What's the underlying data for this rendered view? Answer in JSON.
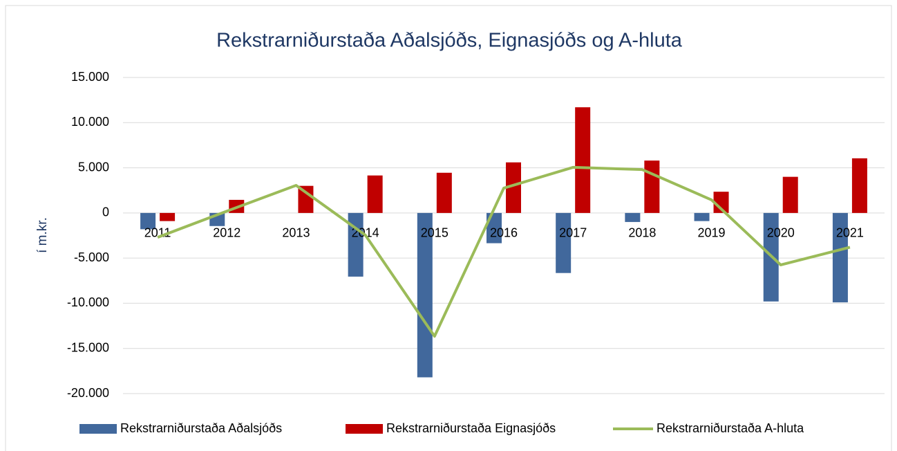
{
  "chart_data": {
    "type": "bar",
    "title": "Rekstrarniðurstaða Aðalsjóðs, Eignasjóðs og A-hluta",
    "y_label": "í m.kr.",
    "categories": [
      "2011",
      "2012",
      "2013",
      "2014",
      "2015",
      "2016",
      "2017",
      "2018",
      "2019",
      "2020",
      "2021"
    ],
    "series": [
      {
        "name": "Rekstrarniðurstaða Aðalsjóðs",
        "color": "#41689c",
        "type": "bar",
        "values": [
          -1800,
          -1450,
          0,
          -7050,
          -18200,
          -3350,
          -6650,
          -1000,
          -900,
          -9800,
          -9900
        ]
      },
      {
        "name": "Rekstrarniðurstaða Eignasjóðs",
        "color": "#c00000",
        "type": "bar",
        "values": [
          -900,
          1450,
          3000,
          4150,
          4450,
          5600,
          11700,
          5800,
          2350,
          4000,
          6050
        ]
      },
      {
        "name": "Rekstrarniðurstaða A-hluta",
        "color": "#9bbb59",
        "type": "line",
        "values": [
          -2700,
          200,
          3050,
          -2450,
          -13650,
          2750,
          5050,
          4800,
          1450,
          -5750,
          -3800
        ]
      }
    ],
    "ylim": [
      -20000,
      15000
    ],
    "yticks": [
      {
        "value": -20000,
        "label": "-20.000"
      },
      {
        "value": -15000,
        "label": "-15.000"
      },
      {
        "value": -10000,
        "label": "-10.000"
      },
      {
        "value": -5000,
        "label": "-5.000"
      },
      0,
      {
        "value": 5000,
        "label": "5.000"
      },
      {
        "value": 10000,
        "label": "10.000"
      },
      {
        "value": 15000,
        "label": "15.000"
      }
    ],
    "grid": true
  }
}
